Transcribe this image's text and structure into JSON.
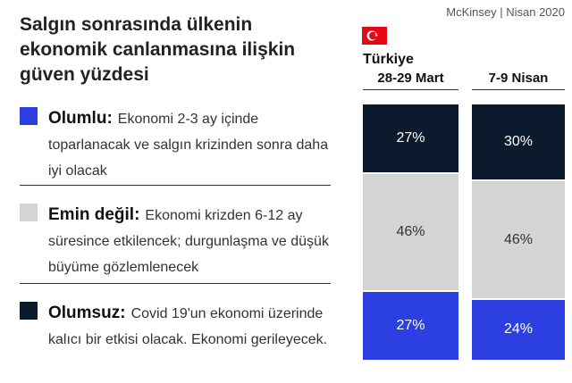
{
  "chart_data": {
    "type": "stacked-bar",
    "title": "Salgın sonrasında ülkenin ekonomik canlanmasına ilişkin güven yüzdesi",
    "source": "McKinsey | Nisan 2020",
    "country": "Türkiye",
    "categories": [
      "28-29 Mart",
      "7-9 Nisan"
    ],
    "ylim": [
      0,
      100
    ],
    "series": [
      {
        "name": "Olumlu:",
        "color": "#2b3fe3",
        "description": "Ekonomi 2-3 ay içinde toparlanacak ve salgın krizinden sonra daha iyi olacak",
        "values": [
          27,
          24
        ],
        "value_labels": [
          "27%",
          "24%"
        ]
      },
      {
        "name": "Emin değil:",
        "color": "#d4d4d4",
        "description": "Ekonomi krizden 6-12 ay süresince etkilencek; durgunlaşma ve düşük büyüme gözlemlenecek",
        "values": [
          46,
          46
        ],
        "value_labels": [
          "46%",
          "46%"
        ]
      },
      {
        "name": "Olumsuz:",
        "color": "#0b1a2c",
        "description": "Covid 19'un ekonomi üzerinde kalıcı bir etkisi olacak. Ekonomi gerileyecek.",
        "values": [
          27,
          30
        ],
        "value_labels": [
          "27%",
          "30%"
        ]
      }
    ]
  }
}
